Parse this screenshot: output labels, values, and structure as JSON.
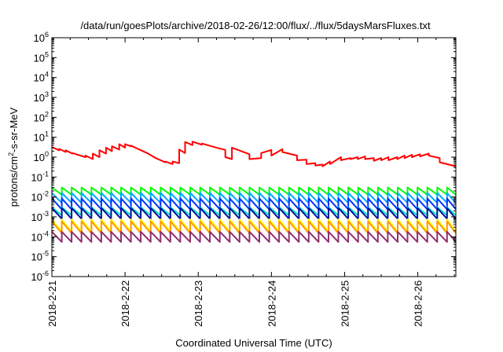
{
  "chart_data": {
    "type": "line",
    "title": "/data/run/goesPlots/archive/2018-02-26/12:00/flux/../flux/5daysMarsFluxes.txt",
    "xlabel": "Coordinated Universal Time (UTC)",
    "ylabel_prefix": "protons/cm",
    "ylabel_sup": "2",
    "ylabel_suffix": "-s-sr-MeV",
    "yscale": "log",
    "ylim_exp": [
      -6,
      6
    ],
    "y_ticks": [
      {
        "base": "10",
        "exp": "-6"
      },
      {
        "base": "10",
        "exp": "-5"
      },
      {
        "base": "10",
        "exp": "-4"
      },
      {
        "base": "10",
        "exp": "-3"
      },
      {
        "base": "10",
        "exp": "-2"
      },
      {
        "base": "10",
        "exp": "-1"
      },
      {
        "base": "10",
        "exp": "0"
      },
      {
        "base": "10",
        "exp": "1"
      },
      {
        "base": "10",
        "exp": "2"
      },
      {
        "base": "10",
        "exp": "3"
      },
      {
        "base": "10",
        "exp": "4"
      },
      {
        "base": "10",
        "exp": "5"
      },
      {
        "base": "10",
        "exp": "6"
      }
    ],
    "x_ticks": [
      "2018-2-21",
      "2018-2-22",
      "2018-2-23",
      "2018-2-24",
      "2018-2-25",
      "2018-2-26"
    ],
    "x_tick_day": [
      0,
      1,
      2,
      3,
      4,
      5
    ],
    "xlim_day": [
      0,
      5.52
    ],
    "grid": false,
    "legend": "none",
    "series": [
      {
        "color": "#ff0000",
        "x_day": [
          0,
          0.1,
          0.1,
          0.19,
          0.19,
          0.28,
          0.28,
          0.46,
          0.46,
          0.56,
          0.56,
          0.65,
          0.65,
          0.74,
          0.74,
          0.82,
          0.82,
          0.92,
          0.92,
          1.0,
          1.0,
          1.08,
          1.08,
          1.3,
          1.3,
          1.42,
          1.42,
          1.55,
          1.55,
          1.65,
          1.65,
          1.74,
          1.74,
          1.82,
          1.82,
          1.92,
          1.92,
          2.05,
          2.05,
          2.28,
          2.28,
          2.37,
          2.37,
          2.37,
          2.46,
          2.46,
          2.7,
          2.7,
          2.86,
          2.86,
          3.0,
          3.0,
          3.15,
          3.15,
          3.35,
          3.35,
          3.48,
          3.48,
          3.6,
          3.6,
          3.7,
          3.7,
          3.8,
          3.8,
          3.95,
          3.95,
          4.08,
          4.08,
          4.18,
          4.18,
          4.28,
          4.28,
          4.4,
          4.4,
          4.5,
          4.5,
          4.6,
          4.6,
          4.72,
          4.72,
          4.82,
          4.82,
          4.92,
          4.92,
          5.03,
          5.03,
          5.15,
          5.15,
          5.3,
          5.3,
          5.52
        ],
        "values": [
          3.2,
          2.2,
          2.6,
          1.8,
          2.2,
          1.5,
          1.6,
          1.0,
          1.2,
          0.8,
          1.5,
          1.0,
          2.2,
          1.5,
          3.0,
          2.0,
          3.5,
          2.4,
          4.5,
          3.0,
          4.5,
          3.5,
          3.8,
          1.6,
          1.6,
          0.9,
          0.9,
          0.55,
          0.6,
          0.45,
          0.6,
          0.5,
          2.4,
          1.6,
          5.8,
          4.0,
          6.0,
          4.2,
          4.8,
          2.8,
          2.8,
          2.3,
          2.3,
          1.0,
          0.8,
          3.0,
          1.4,
          0.8,
          0.9,
          1.6,
          2.3,
          1.2,
          2.5,
          1.8,
          1.2,
          0.7,
          0.75,
          0.45,
          0.5,
          0.38,
          0.42,
          0.35,
          0.6,
          0.45,
          1.0,
          0.7,
          0.9,
          0.8,
          1.0,
          0.8,
          1.1,
          0.8,
          0.9,
          0.65,
          0.9,
          0.7,
          1.0,
          0.7,
          1.0,
          0.8,
          1.2,
          0.9,
          1.3,
          1.0,
          1.4,
          1.1,
          1.5,
          1.2,
          0.9,
          0.55,
          0.35
        ]
      },
      {
        "color": "#00ff00",
        "mode": "sawtooth",
        "period_day": 0.135,
        "start": 0.03,
        "end": 0.013
      },
      {
        "color": "#00aaff",
        "mode": "sawtooth",
        "period_day": 0.135,
        "start": 0.016,
        "end": 0.005
      },
      {
        "color": "#0033ff",
        "mode": "sawtooth",
        "period_day": 0.135,
        "start": 0.0085,
        "end": 0.0024
      },
      {
        "color": "#00e0c0",
        "mode": "sawtooth",
        "period_day": 0.135,
        "start": 0.003,
        "end": 0.0012
      },
      {
        "color": "#00139f",
        "mode": "sawtooth",
        "period_day": 0.135,
        "start": 0.0028,
        "end": 0.0008
      },
      {
        "color": "#ffff00",
        "mode": "sawtooth",
        "period_day": 0.135,
        "start": 0.00075,
        "end": 0.00018
      },
      {
        "color": "#ff9900",
        "mode": "sawtooth",
        "period_day": 0.135,
        "start": 0.0006,
        "end": 0.00015
      },
      {
        "color": "#8f2f6f",
        "mode": "sawtooth",
        "period_day": 0.135,
        "start": 0.00018,
        "end": 5.5e-05
      }
    ]
  }
}
